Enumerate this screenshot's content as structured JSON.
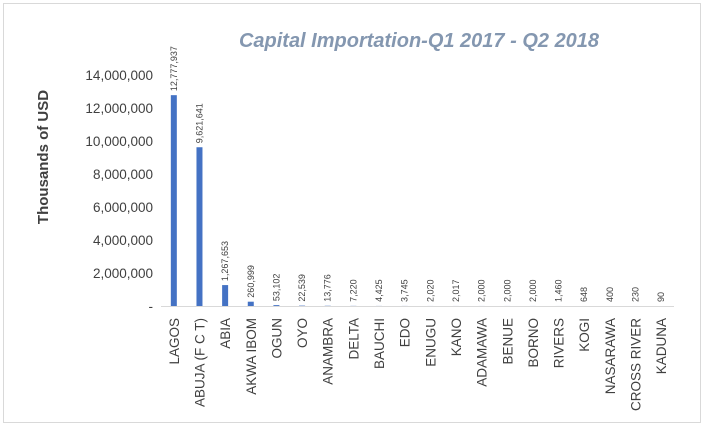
{
  "chart_data": {
    "type": "bar",
    "title": "Capital Importation-Q1 2017 - Q2 2018",
    "xlabel": "",
    "ylabel": "Thousands of USD",
    "ylim": [
      0,
      14000000
    ],
    "yticks": [
      0,
      2000000,
      4000000,
      6000000,
      8000000,
      10000000,
      12000000,
      14000000
    ],
    "ytick_labels": [
      "-",
      "2,000,000",
      "4,000,000",
      "6,000,000",
      "8,000,000",
      "10,000,000",
      "12,000,000",
      "14,000,000"
    ],
    "grid": false,
    "legend": "none",
    "bar_color": "#4472c4",
    "categories": [
      "LAGOS",
      "ABUJA (F C T)",
      "ABIA",
      "AKWA IBOM",
      "OGUN",
      "OYO",
      "ANAMBRA",
      "DELTA",
      "BAUCHI",
      "EDO",
      "ENUGU",
      "KANO",
      "ADAMAWA",
      "BENUE",
      "BORNO",
      "RIVERS",
      "KOGI",
      "NASARAWA",
      "CROSS RIVER",
      "KADUNA"
    ],
    "values": [
      12777937,
      9621641,
      1267653,
      260999,
      53102,
      22539,
      13776,
      7220,
      4425,
      3745,
      2020,
      2017,
      2000,
      2000,
      2000,
      1460,
      648,
      400,
      230,
      90
    ],
    "data_labels": [
      "12,777,937",
      "9,621,641",
      "1,267,653",
      "260,999",
      "53,102",
      "22,539",
      "13,776",
      "7,220",
      "4,425",
      "3,745",
      "2,020",
      "2,017",
      "2,000",
      "2,000",
      "2,000",
      "1,460",
      "648",
      "400",
      "230",
      "90"
    ]
  }
}
